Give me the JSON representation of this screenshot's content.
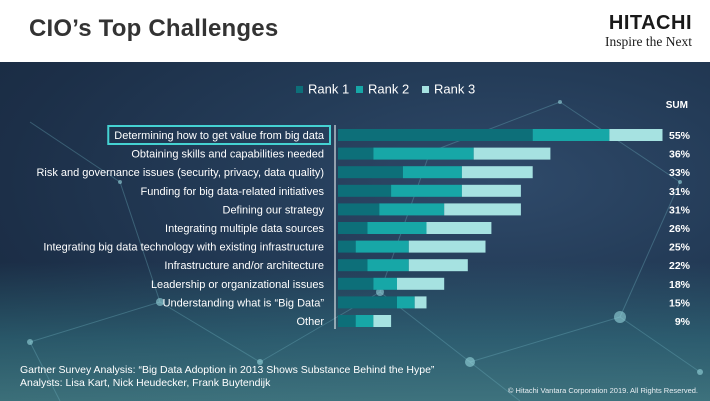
{
  "header": {
    "title": "CIO’s Top Challenges",
    "brand_name": "HITACHI",
    "brand_tagline": "Inspire the Next"
  },
  "colors": {
    "rank1": "#0d6f79",
    "rank2": "#17a7a7",
    "rank3": "#a6e2e1",
    "highlight": "#45d2d2"
  },
  "chart_data": {
    "type": "bar",
    "stacked": true,
    "orientation": "horizontal",
    "legend_position": "top",
    "sum_label": "SUM",
    "categories": [
      "Determining how to get value from big data",
      "Obtaining skills and capabilities needed",
      "Risk and governance issues (security, privacy, data quality)",
      "Funding for big data-related initiatives",
      "Defining our strategy",
      "Integrating multiple data sources",
      "Integrating big data technology with existing infrastructure",
      "Infrastructure and/or architecture",
      "Leadership or organizational issues",
      "Understanding what is “Big Data”",
      "Other"
    ],
    "series": [
      {
        "name": "Rank 1",
        "values": [
          33,
          6,
          11,
          9,
          7,
          5,
          3,
          5,
          6,
          10,
          3
        ]
      },
      {
        "name": "Rank 2",
        "values": [
          13,
          17,
          10,
          12,
          11,
          10,
          9,
          7,
          4,
          3,
          3
        ]
      },
      {
        "name": "Rank 3",
        "values": [
          9,
          13,
          12,
          10,
          13,
          11,
          13,
          10,
          8,
          2,
          3
        ]
      }
    ],
    "sums": [
      "55%",
      "36%",
      "33%",
      "31%",
      "31%",
      "26%",
      "25%",
      "22%",
      "18%",
      "15%",
      "9%"
    ],
    "highlighted_category": "Determining how to get value from big data",
    "xlim": [
      0,
      55
    ]
  },
  "footer": {
    "source": "Gartner Survey Analysis: “Big Data Adoption in 2013 Shows Substance Behind the Hype”",
    "analysts": "Analysts: Lisa Kart, Nick Heudecker, Frank Buytendijk",
    "copyright": "© Hitachi Vantara Corporation 2019. All Rights Reserved."
  }
}
